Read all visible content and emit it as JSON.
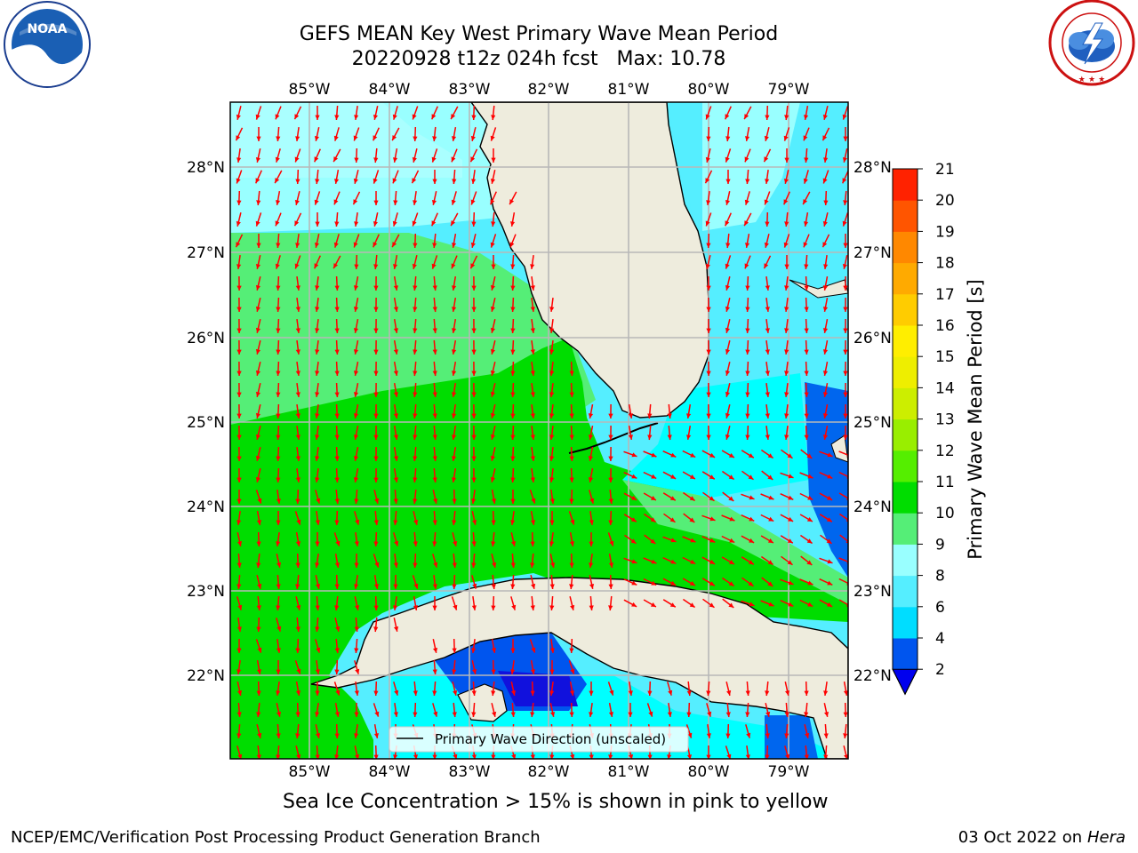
{
  "header": {
    "title_line1": "GEFS MEAN Key West Primary Wave Mean Period",
    "title_line2": "20220928 t12z 024h fcst   Max: 10.78"
  },
  "logos": {
    "noaa": {
      "text": "NOAA",
      "ring_text": "NATIONAL OCEANIC AND ATMOSPHERIC ADMINISTRATION · U.S. DEPARTMENT OF COMMERCE"
    },
    "nws": {
      "ring_text": "NATIONAL WEATHER SERVICE"
    }
  },
  "map": {
    "lon_labels": [
      "85°W",
      "84°W",
      "83°W",
      "82°W",
      "81°W",
      "80°W",
      "79°W"
    ],
    "lat_labels": [
      "28°N",
      "27°N",
      "26°N",
      "25°N",
      "24°N",
      "23°N",
      "22°N"
    ],
    "legend_label": "Primary Wave Direction (unscaled)",
    "arrow_color": "#ff0000",
    "land_color": "#eeecdd"
  },
  "colorbar": {
    "label": "Primary Wave Mean Period [s]",
    "ticks": [
      "2",
      "4",
      "6",
      "8",
      "9",
      "10",
      "11",
      "12",
      "13",
      "14",
      "15",
      "16",
      "17",
      "18",
      "19",
      "20",
      "21"
    ],
    "colors": [
      "#0055ee",
      "#00ddff",
      "#55eeff",
      "#99ffff",
      "#55ee77",
      "#00dd00",
      "#55ee00",
      "#99ee00",
      "#ccee00",
      "#eeee00",
      "#ffee00",
      "#ffcc00",
      "#ffaa00",
      "#ff8800",
      "#ff5500",
      "#ff2200"
    ],
    "extend_color": "#0000ee"
  },
  "footer": {
    "note": "Sea Ice Concentration > 15% is shown in pink to yellow",
    "left": "NCEP/EMC/Verification Post Processing Product Generation Branch",
    "right_date": "03 Oct 2022 on ",
    "right_host": "Hera"
  }
}
